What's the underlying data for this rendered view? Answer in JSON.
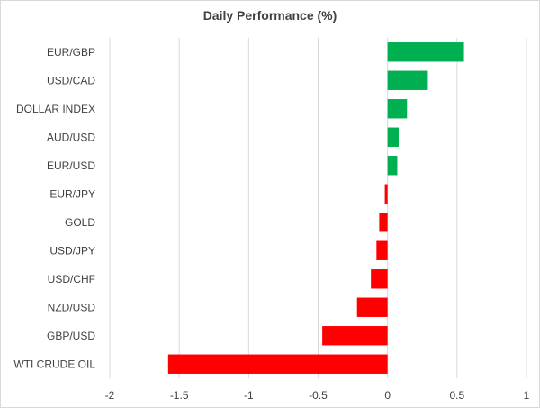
{
  "chart_data": {
    "type": "bar",
    "orientation": "horizontal",
    "title": "Daily Performance (%)",
    "xlabel": "",
    "ylabel": "",
    "xlim": [
      -2,
      1
    ],
    "ticks": [
      -2,
      -1.5,
      -1,
      -0.5,
      0,
      0.5,
      1
    ],
    "grid": "vertical",
    "legend": "none",
    "positive_color": "#00b050",
    "negative_color": "#ff0000",
    "categories": [
      "EUR/GBP",
      "USD/CAD",
      "DOLLAR INDEX",
      "AUD/USD",
      "EUR/USD",
      "EUR/JPY",
      "GOLD",
      "USD/JPY",
      "USD/CHF",
      "NZD/USD",
      "GBP/USD",
      "WTI CRUDE OIL"
    ],
    "values": [
      0.55,
      0.29,
      0.14,
      0.08,
      0.07,
      -0.02,
      -0.06,
      -0.08,
      -0.12,
      -0.22,
      -0.47,
      -1.58
    ]
  }
}
